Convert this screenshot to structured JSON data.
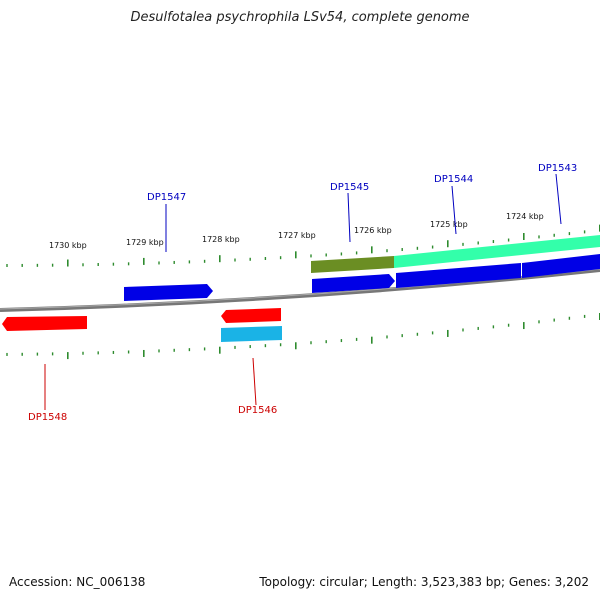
{
  "header": {
    "title": "Desulfotalea psychrophila LSv54, complete genome"
  },
  "footer": {
    "accession": "Accession: NC_006138",
    "stats": "Topology: circular; Length: 3,523,383 bp; Genes: 3,202"
  },
  "map": {
    "colors": {
      "backbone": "#777777",
      "tick": "#2e8b2e",
      "forward_cds": "#0000e6",
      "reverse_cds": "#ff0000",
      "forward_label": "#0000c0",
      "reverse_label": "#cc0000",
      "olive_feature": "#6b8e23",
      "mint_feature": "#33ffaa",
      "cyan_feature": "#1ab3e6"
    },
    "kbp_labels": [
      "1730 kbp",
      "1729 kbp",
      "1728 kbp",
      "1727 kbp",
      "1726 kbp",
      "1725 kbp",
      "1724 kbp"
    ],
    "forward_genes": [
      "DP1547",
      "DP1545",
      "DP1544",
      "DP1543"
    ],
    "reverse_genes": [
      "DP1548",
      "DP1546"
    ]
  }
}
